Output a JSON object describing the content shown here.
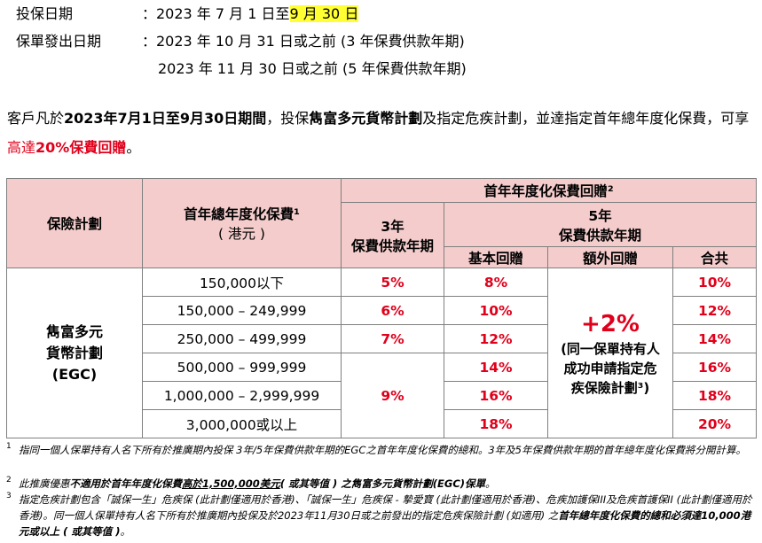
{
  "info": {
    "period_label": "投保日期",
    "period_value_prefix": "：2023 年 7 月 1 日至",
    "period_value_highlight": "9 月 30 日",
    "issue_label": "保單發出日期",
    "issue_line1": "：2023 年 10 月 31 日或之前 (3 年保費供款年期)",
    "issue_line2": "2023 年 11 月 30 日或之前 (5 年保費供款年期)"
  },
  "intro": {
    "p1": "客戶凡於",
    "p2": "2023年7月1日至9月30日期間",
    "p3": "，投保",
    "p4": "雋富多元貨幣計劃",
    "p5": "及指定危疾計劃，並達指定首年總年度化保費，可享",
    "p6": "高達",
    "p7": "20%保費回贈",
    "p8": "。"
  },
  "table": {
    "h_plan": "保險計劃",
    "h_premium_1": "首年總年度化保費¹",
    "h_premium_2": "( 港元 )",
    "h_rebate": "首年年度化保費回贈²",
    "h_3yr_1": "3年",
    "h_3yr_2": "保費供款年期",
    "h_5yr_1": "5年",
    "h_5yr_2": "保費供款年期",
    "h_basic": "基本回贈",
    "h_extra": "額外回贈",
    "h_total": "合共",
    "plan_1": "雋富多元",
    "plan_2": "貨幣計劃",
    "plan_3": "(EGC)",
    "rows": [
      {
        "range": "150,000以下",
        "three": "5%",
        "basic": "8%",
        "total": "10%"
      },
      {
        "range": "150,000 – 249,999",
        "three": "6%",
        "basic": "10%",
        "total": "12%"
      },
      {
        "range": "250,000 – 499,999",
        "three": "7%",
        "basic": "12%",
        "total": "14%"
      },
      {
        "range": "500,000 – 999,999",
        "three": "",
        "basic": "14%",
        "total": "16%"
      },
      {
        "range": "1,000,000 – 2,999,999",
        "three": "9%",
        "basic": "16%",
        "total": "18%"
      },
      {
        "range": "3,000,000或以上",
        "three": "",
        "basic": "18%",
        "total": "20%"
      }
    ],
    "extra_big": "+2%",
    "extra_note_1": "(同一保單持有人",
    "extra_note_2": "成功申請指定危",
    "extra_note_3": "疾保險計劃³)"
  },
  "footnotes": {
    "n1": "1",
    "f1": "指同一個人保單持有人名下所有於推廣期內投保 3年/5年保費供款年期的EGC之首年年度化保費的總和。3年及5年保費供款年期的首年總年度化保費將分開計算。",
    "n2": "2",
    "f2a": "此推廣優惠",
    "f2b": "不適用於首年年度化保費",
    "f2c": "高於1,500,000美元",
    "f2d": "( 或其等值 ) 之雋富多元貨幣計劃(EGC)保單",
    "f2e": "。",
    "n3": "3",
    "f3a": "指定危疾計劃包含「誠保一生」危疾保 (此計劃僅適用於香港)、「誠保一生」危疾保 - 摯愛寶 (此計劃僅適用於香港)、危疾加護保III及危疾首護保II (此計劃僅適用於香港)。同一個人保單持有人名下所有於推廣期內投保及於2023年11月30日或之前發出的指定危疾保險計劃 (如適用) 之",
    "f3b": "首年總年度化保費的總和必須達10,000港元或以上 ( 或其等值 )",
    "f3c": "。"
  }
}
